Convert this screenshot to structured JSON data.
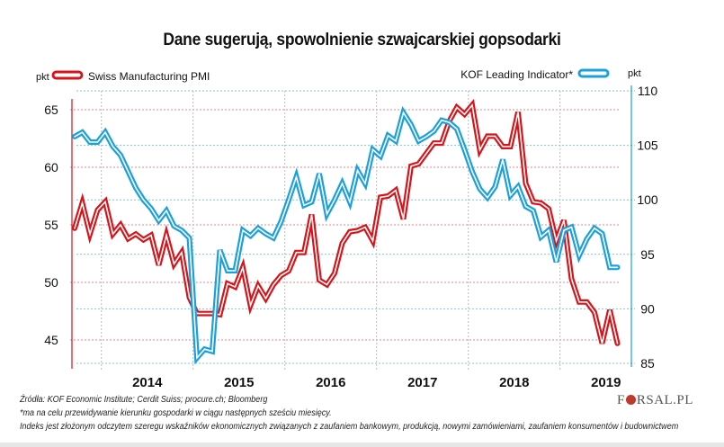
{
  "chart_data": {
    "type": "line",
    "title": "Dane sugerują, spowolnienie szwajcarskiej gopsodarki",
    "x_start": "2013-09",
    "x_end": "2019-07",
    "x_frequency": "monthly",
    "x_tick_labels": [
      "2014",
      "2015",
      "2016",
      "2017",
      "2018",
      "2019"
    ],
    "grid": true,
    "legend": [
      "top-left: Swiss Manufacturing PMI",
      "top-right: KOF Leading Indicator*"
    ],
    "left_axis": {
      "unit_label": "pkt",
      "ticks": [
        45,
        50,
        55,
        60,
        65
      ],
      "range": [
        42.5,
        65.8
      ]
    },
    "right_axis": {
      "unit_label": "pkt",
      "ticks": [
        85,
        90,
        95,
        100,
        105,
        110
      ],
      "range": [
        84.6,
        110
      ]
    },
    "series": [
      {
        "name": "Swiss Manufacturing PMI",
        "axis": "left",
        "color": "#d7141a",
        "values": [
          54.7,
          56.9,
          54.2,
          56.3,
          57.0,
          54.2,
          55.0,
          53.8,
          54.2,
          53.7,
          54.1,
          51.5,
          54.1,
          51.6,
          52.6,
          48.7,
          47.3,
          47.3,
          47.3,
          47.2,
          49.9,
          49.6,
          51.3,
          48.0,
          49.7,
          48.6,
          49.8,
          50.6,
          51.0,
          52.6,
          52.6,
          55.9,
          50.2,
          49.8,
          50.8,
          53.4,
          54.4,
          54.5,
          54.8,
          53.6,
          57.4,
          57.5,
          58.0,
          55.5,
          60.1,
          60.3,
          61.2,
          62.1,
          62.1,
          64.0,
          65.2,
          64.6,
          65.4,
          61.5,
          62.7,
          62.7,
          61.8,
          61.8,
          64.8,
          58.6,
          57.0,
          56.9,
          56.4,
          53.6,
          55.4,
          50.3,
          48.3,
          48.3,
          47.4,
          44.7,
          47.6,
          44.7
        ]
      },
      {
        "name": "KOF Leading Indicator*",
        "axis": "right",
        "color": "#1aa0dc",
        "values": [
          105.8,
          106.2,
          105.3,
          105.3,
          106.2,
          104.9,
          104.1,
          102.6,
          101.1,
          100.0,
          99.2,
          98.1,
          99.0,
          97.6,
          97.2,
          96.5,
          85.5,
          86.3,
          86.1,
          95.4,
          93.5,
          93.5,
          97.2,
          96.7,
          97.4,
          96.9,
          96.5,
          98.0,
          100.0,
          102.1,
          99.5,
          99.8,
          102.4,
          98.7,
          100.0,
          101.5,
          99.8,
          102.7,
          101.5,
          104.6,
          104.0,
          105.9,
          105.4,
          108.0,
          106.9,
          105.4,
          105.8,
          106.3,
          107.3,
          107.1,
          106.5,
          104.6,
          102.6,
          101.0,
          100.2,
          101.2,
          103.7,
          100.4,
          101.2,
          99.4,
          99.0,
          96.6,
          97.2,
          94.3,
          97.2,
          97.5,
          94.9,
          96.4,
          97.4,
          96.9,
          93.8,
          93.8
        ]
      }
    ]
  },
  "header": {
    "title": "Dane sugerują, spowolnienie szwajcarskiej gopsodarki"
  },
  "legend": {
    "pmi_label": "Swiss Manufacturing PMI",
    "kof_label": "KOF Leading Indicator*",
    "left_unit": "pkt",
    "right_unit": "pkt"
  },
  "footer": {
    "sources": "Źródła: KOF Economic Institute; Cerdit Suiss; procure.ch; Bloomberg",
    "note1": "*ma na celu przewidywanie kierunku gospodarki w ciągu następnych sześciu miesięcy.",
    "note2": "Indeks jest złożonym odczytem szeregu wskaźników ekonomicznych związanych z zaufaniem bankowym, produkcją, nowymi zamówieniami, zaufaniem konsumentów i budownictwem"
  },
  "logo": {
    "left": "F",
    "right": "RSAL.PL"
  }
}
